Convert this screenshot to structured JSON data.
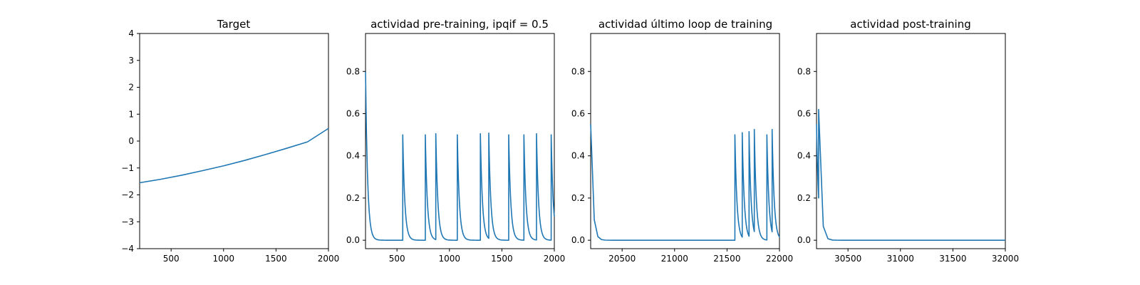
{
  "chart_data": [
    {
      "type": "line",
      "title": "Target",
      "xlabel": "",
      "ylabel": "",
      "xlim": [
        200,
        2000
      ],
      "ylim": [
        -4,
        4
      ],
      "xticks": [
        500,
        1000,
        1500,
        2000
      ],
      "yticks": [
        -4,
        -3,
        -2,
        -1,
        0,
        1,
        2,
        3,
        4
      ],
      "grid": false,
      "color": "#1f77b4",
      "series": [
        {
          "x": [
            200,
            400,
            600,
            800,
            1000,
            1200,
            1400,
            1600,
            1800,
            2000
          ],
          "y": [
            -1.55,
            -1.42,
            -1.27,
            -1.1,
            -0.92,
            -0.72,
            -0.5,
            -0.27,
            -0.03,
            0.47
          ]
        }
      ]
    },
    {
      "type": "line",
      "title": "actividad pre-training, ipqif = 0.5",
      "xlabel": "",
      "ylabel": "",
      "xlim": [
        200,
        2000
      ],
      "ylim": [
        -0.04,
        0.98
      ],
      "xticks": [
        500,
        1000,
        1500,
        2000
      ],
      "yticks": [
        0.0,
        0.2,
        0.4,
        0.6,
        0.8
      ],
      "grid": false,
      "color": "#1f77b4",
      "start": {
        "x": 200,
        "y": 0.8
      },
      "spikes": [
        {
          "x": 555,
          "peak": 0.5
        },
        {
          "x": 770,
          "peak": 0.5
        },
        {
          "x": 870,
          "peak": 0.505
        },
        {
          "x": 1075,
          "peak": 0.5
        },
        {
          "x": 1295,
          "peak": 0.505
        },
        {
          "x": 1375,
          "peak": 0.508
        },
        {
          "x": 1565,
          "peak": 0.5
        },
        {
          "x": 1710,
          "peak": 0.5
        },
        {
          "x": 1830,
          "peak": 0.505
        },
        {
          "x": 1970,
          "peak": 0.5
        }
      ],
      "end_value": 0.12
    },
    {
      "type": "line",
      "title": "actividad último loop de training",
      "xlabel": "",
      "ylabel": "",
      "xlim": [
        20200,
        22000
      ],
      "ylim": [
        -0.04,
        0.98
      ],
      "xticks": [
        20500,
        21000,
        21500,
        22000
      ],
      "yticks": [
        0.0,
        0.2,
        0.4,
        0.6,
        0.8
      ],
      "grid": false,
      "color": "#1f77b4",
      "start": {
        "x": 20200,
        "y": 0.55
      },
      "spikes": [
        {
          "x": 21575,
          "peak": 0.5
        },
        {
          "x": 21645,
          "peak": 0.51
        },
        {
          "x": 21710,
          "peak": 0.515
        },
        {
          "x": 21760,
          "peak": 0.525
        },
        {
          "x": 21880,
          "peak": 0.5
        },
        {
          "x": 21930,
          "peak": 0.525
        }
      ],
      "end_value": 0.02
    },
    {
      "type": "line",
      "title": "actividad post-training",
      "xlabel": "",
      "ylabel": "",
      "xlim": [
        30200,
        32000
      ],
      "ylim": [
        -0.04,
        0.98
      ],
      "xticks": [
        30500,
        31000,
        31500,
        32000
      ],
      "yticks": [
        0.0,
        0.2,
        0.4,
        0.6,
        0.8
      ],
      "grid": false,
      "color": "#1f77b4",
      "start": {
        "x": 30200,
        "y": 0.55
      },
      "spikes": [
        {
          "x": 30220,
          "peak": 0.62
        }
      ],
      "end_value": 0.0
    }
  ]
}
